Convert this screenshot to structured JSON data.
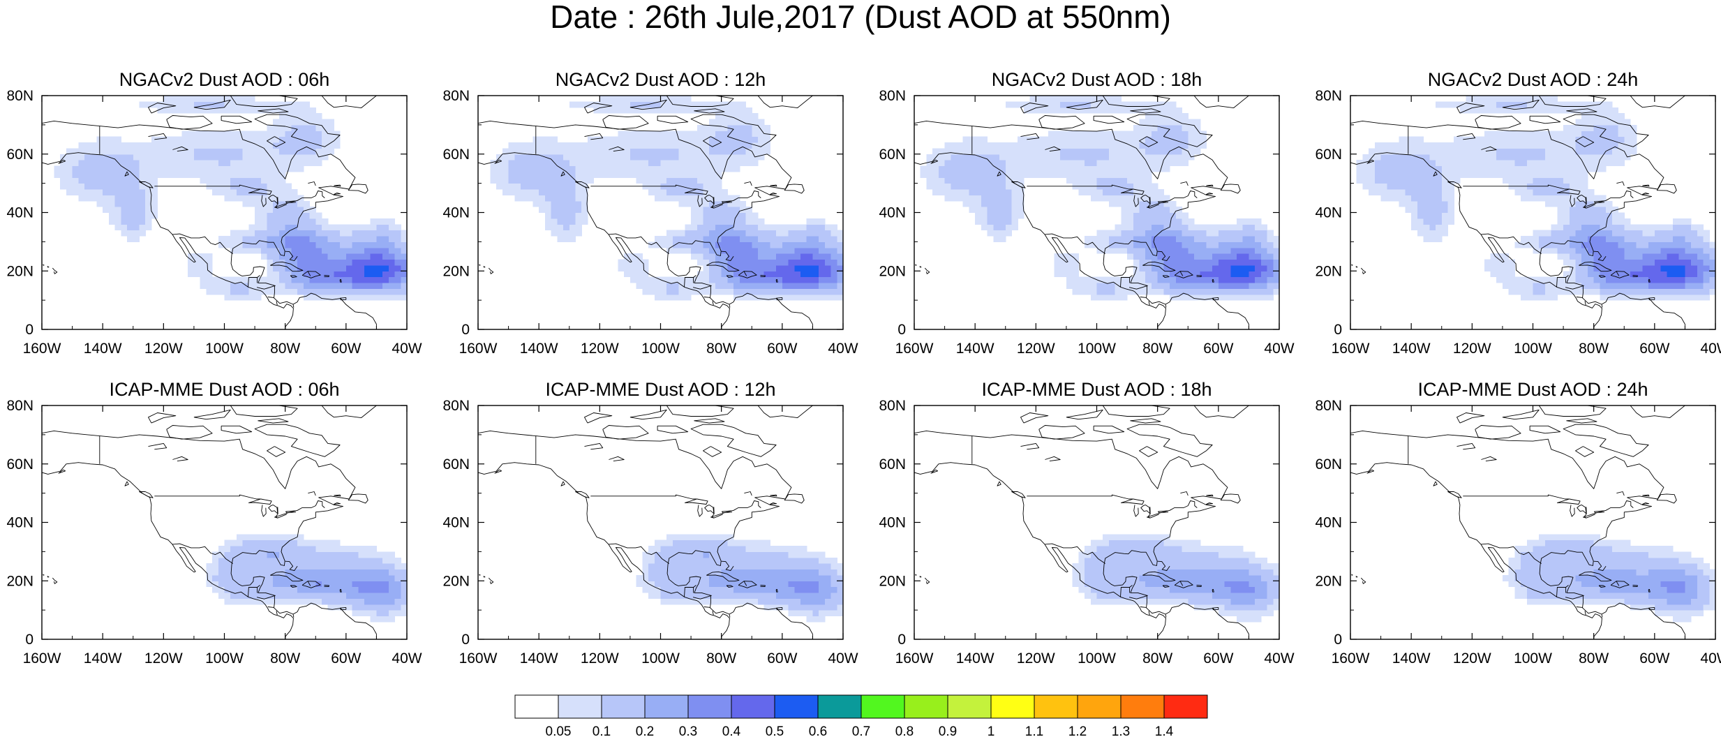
{
  "title": "Date : 26th Jule,2017 (Dust AOD at 550nm)",
  "map_extent": {
    "lon_min": -160,
    "lon_max": -40,
    "lat_min": 0,
    "lat_max": 80
  },
  "x_ticks": [
    "160W",
    "140W",
    "120W",
    "100W",
    "80W",
    "60W",
    "40W"
  ],
  "y_ticks": [
    "0",
    "20N",
    "40N",
    "60N",
    "80N"
  ],
  "panels": [
    {
      "title": "NGACv2 Dust AOD : 06h",
      "model": "NGACv2",
      "lead": "06h"
    },
    {
      "title": "NGACv2 Dust AOD : 12h",
      "model": "NGACv2",
      "lead": "12h"
    },
    {
      "title": "NGACv2 Dust AOD : 18h",
      "model": "NGACv2",
      "lead": "18h"
    },
    {
      "title": "NGACv2 Dust AOD : 24h",
      "model": "NGACv2",
      "lead": "24h"
    },
    {
      "title": "ICAP-MME Dust AOD : 06h",
      "model": "ICAP-MME",
      "lead": "06h"
    },
    {
      "title": "ICAP-MME Dust AOD : 12h",
      "model": "ICAP-MME",
      "lead": "12h"
    },
    {
      "title": "ICAP-MME Dust AOD : 18h",
      "model": "ICAP-MME",
      "lead": "18h"
    },
    {
      "title": "ICAP-MME Dust AOD : 24h",
      "model": "ICAP-MME",
      "lead": "24h"
    }
  ],
  "colorbar": {
    "labels": [
      "0.05",
      "0.1",
      "0.2",
      "0.3",
      "0.4",
      "0.5",
      "0.6",
      "0.7",
      "0.8",
      "0.9",
      "1",
      "1.1",
      "1.2",
      "1.3",
      "1.4"
    ],
    "colors": [
      "#ffffff",
      "#d6e0fb",
      "#b7c6f9",
      "#98aef5",
      "#7f8ff1",
      "#6468ec",
      "#1c5cf2",
      "#0b9a9a",
      "#52f71f",
      "#98ef1c",
      "#c4f23c",
      "#ffff14",
      "#ffc20f",
      "#ffa50d",
      "#ff7d0d",
      "#ff2b12"
    ]
  }
}
